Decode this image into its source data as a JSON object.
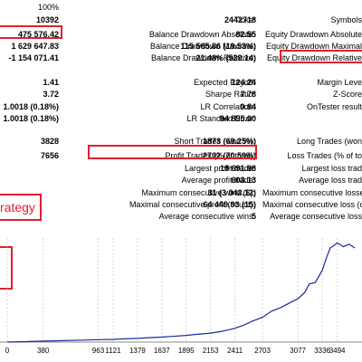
{
  "top_pct": "100%",
  "col1_values": [
    "10392",
    "475 576.42",
    "1 629 647.83",
    "-1 154 071.41",
    "1.41",
    "3.72",
    "1.0018 (0.18%)",
    "1.0018 (0.18%)",
    "3828",
    "7656"
  ],
  "col2_labels": [
    "Ticks:",
    "Balance Drawdown Absolute:",
    "Balance Drawdown Maximal:",
    "Balance Drawdown Relative:",
    "Expected Payoff:",
    "Sharpe Ratio:",
    "LR Correlation:",
    "LR Standard Error:",
    "Short Trades (won %):",
    "Profit Trades (% of total):",
    "Largest profit trade:",
    "Average profit trade:",
    "Maximum consecutive wins ($):",
    "Maximal consecutive profit (count):",
    "Average consecutive wins:"
  ],
  "col3_values": [
    "2442718",
    "82.55",
    "115 565.86 (19.53%)",
    "21.48% (529.14)",
    "124.24",
    "7.78",
    "0.84",
    "94 895.00",
    "1873 (69.25%)",
    "2702 (70.59%)",
    "19 691.98",
    "603.13",
    "31 (3 043.12)",
    "64 449.93 (15)",
    "5"
  ],
  "col4_labels": [
    "Symbols",
    "Equity Drawdown Absolute",
    "Equity Drawdown Maximal",
    "Equity Drawdown Relative",
    "Margin Leve",
    "Z-Score",
    "OnTester result",
    "Long Trades (won",
    "Loss Trades (% of to",
    "Largest loss trad",
    "Average loss trad",
    "Maximum consecutive losses",
    "Maximal consecutive loss (cou",
    "Average consecutive loss"
  ],
  "strategy_label": "rategy",
  "chart_data": {
    "type": "line",
    "x_ticks": [
      "0",
      "380",
      "963",
      "1121",
      "1379",
      "1637",
      "1895",
      "2153",
      "2411",
      "2703",
      "3077",
      "3336",
      "3494"
    ],
    "series": [
      {
        "color": "#1c2a9c",
        "points": [
          [
            0,
            0
          ],
          [
            200,
            0.2
          ],
          [
            380,
            0.4
          ],
          [
            600,
            0.6
          ],
          [
            800,
            0.8
          ],
          [
            963,
            1.0
          ],
          [
            1121,
            1.1
          ],
          [
            1250,
            1.3
          ],
          [
            1379,
            1.5
          ],
          [
            1500,
            1.8
          ],
          [
            1637,
            2.0
          ],
          [
            1750,
            2.3
          ],
          [
            1895,
            2.7
          ],
          [
            2000,
            3.1
          ],
          [
            2153,
            3.6
          ],
          [
            2250,
            4.2
          ],
          [
            2350,
            5.0
          ],
          [
            2411,
            5.6
          ],
          [
            2500,
            6.8
          ],
          [
            2600,
            8.5
          ],
          [
            2703,
            10.0
          ],
          [
            2800,
            12.5
          ],
          [
            2900,
            14.0
          ],
          [
            3000,
            16.0
          ],
          [
            3077,
            17.5
          ],
          [
            3150,
            20.0
          ],
          [
            3200,
            23.5
          ],
          [
            3260,
            24.0
          ],
          [
            3300,
            26.5
          ],
          [
            3336,
            29.0
          ],
          [
            3380,
            34.0
          ],
          [
            3420,
            38.0
          ],
          [
            3460,
            39.0
          ],
          [
            3494,
            40.0
          ],
          [
            3560,
            38.5
          ],
          [
            3620,
            39.5
          ],
          [
            3680,
            38.0
          ]
        ]
      }
    ],
    "x_max": 3680,
    "y_max": 42
  }
}
